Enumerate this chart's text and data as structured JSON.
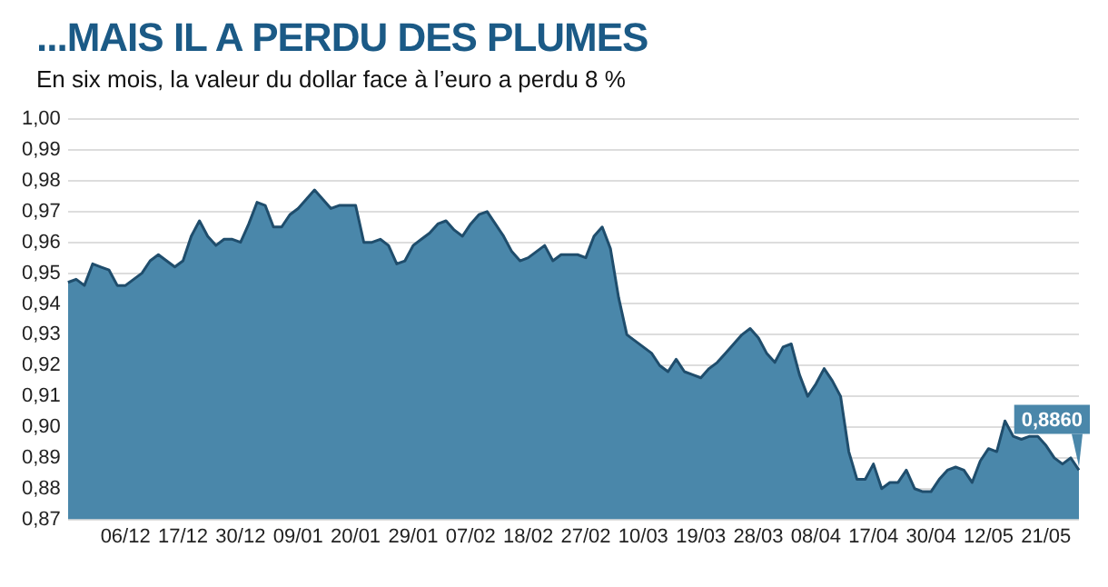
{
  "chart_data": {
    "type": "area",
    "title": "...MAIS IL A PERDU DES PLUMES",
    "subtitle": "En six mois, la valeur du dollar face à l’euro a perdu 8 %",
    "categories": [
      null,
      null,
      null,
      null,
      null,
      null,
      null,
      "06/12",
      null,
      null,
      null,
      null,
      null,
      null,
      "17/12",
      null,
      null,
      null,
      null,
      null,
      null,
      "30/12",
      null,
      null,
      null,
      null,
      null,
      null,
      "09/01",
      null,
      null,
      null,
      null,
      null,
      null,
      "20/01",
      null,
      null,
      null,
      null,
      null,
      null,
      "29/01",
      null,
      null,
      null,
      null,
      null,
      null,
      "07/02",
      null,
      null,
      null,
      null,
      null,
      null,
      "18/02",
      null,
      null,
      null,
      null,
      null,
      null,
      "27/02",
      null,
      null,
      null,
      null,
      null,
      null,
      "10/03",
      null,
      null,
      null,
      null,
      null,
      null,
      "19/03",
      null,
      null,
      null,
      null,
      null,
      null,
      "28/03",
      null,
      null,
      null,
      null,
      null,
      null,
      "08/04",
      null,
      null,
      null,
      null,
      null,
      null,
      "17/04",
      null,
      null,
      null,
      null,
      null,
      null,
      "30/04",
      null,
      null,
      null,
      null,
      null,
      null,
      "12/05",
      null,
      null,
      null,
      null,
      null,
      null,
      "21/05",
      null,
      null,
      null,
      null
    ],
    "series": [
      {
        "color": "#4a87aa",
        "values": [
          0.947,
          0.948,
          0.946,
          0.953,
          0.952,
          0.951,
          0.946,
          0.946,
          0.948,
          0.95,
          0.954,
          0.956,
          0.954,
          0.952,
          0.954,
          0.962,
          0.967,
          0.962,
          0.959,
          0.961,
          0.961,
          0.96,
          0.966,
          0.973,
          0.972,
          0.965,
          0.965,
          0.969,
          0.971,
          0.974,
          0.977,
          0.974,
          0.971,
          0.972,
          0.972,
          0.972,
          0.96,
          0.96,
          0.961,
          0.959,
          0.953,
          0.954,
          0.959,
          0.961,
          0.963,
          0.966,
          0.967,
          0.964,
          0.962,
          0.966,
          0.969,
          0.97,
          0.966,
          0.962,
          0.957,
          0.954,
          0.955,
          0.957,
          0.959,
          0.954,
          0.956,
          0.956,
          0.956,
          0.955,
          0.962,
          0.965,
          0.958,
          0.942,
          0.93,
          0.928,
          0.926,
          0.924,
          0.92,
          0.918,
          0.922,
          0.918,
          0.917,
          0.916,
          0.919,
          0.921,
          0.924,
          0.927,
          0.93,
          0.932,
          0.929,
          0.924,
          0.921,
          0.926,
          0.927,
          0.917,
          0.91,
          0.914,
          0.919,
          0.915,
          0.91,
          0.892,
          0.883,
          0.883,
          0.888,
          0.88,
          0.882,
          0.882,
          0.886,
          0.88,
          0.879,
          0.879,
          0.883,
          0.886,
          0.887,
          0.886,
          0.882,
          0.889,
          0.893,
          0.892,
          0.902,
          0.897,
          0.896,
          0.897,
          0.897,
          0.894,
          0.89,
          0.888,
          0.89,
          0.886
        ],
        "value_labels": [
          null,
          null,
          null,
          null,
          null,
          null,
          null,
          null,
          null,
          null,
          null,
          null,
          null,
          null,
          null,
          null,
          null,
          null,
          null,
          null,
          null,
          null,
          null,
          null,
          null,
          null,
          null,
          null,
          null,
          null,
          null,
          null,
          null,
          null,
          null,
          null,
          null,
          null,
          null,
          null,
          null,
          null,
          null,
          null,
          null,
          null,
          null,
          null,
          null,
          null,
          null,
          null,
          null,
          null,
          null,
          null,
          null,
          null,
          null,
          null,
          null,
          null,
          null,
          null,
          null,
          null,
          null,
          null,
          null,
          null,
          null,
          null,
          null,
          null,
          null,
          null,
          null,
          null,
          null,
          null,
          null,
          null,
          null,
          null,
          null,
          null,
          null,
          null,
          null,
          null,
          null,
          null,
          null,
          null,
          null,
          null,
          null,
          null,
          null,
          null,
          null,
          null,
          null,
          null,
          null,
          null,
          null,
          null,
          null,
          null,
          null,
          null,
          null,
          null,
          null,
          null,
          null,
          null,
          null,
          null,
          null,
          null,
          null,
          "0,8860"
        ]
      }
    ],
    "ylim": [
      0.87,
      1.0
    ],
    "yticks": [
      {
        "value": 0.87,
        "label": "0,87"
      },
      {
        "value": 0.88,
        "label": "0,88"
      },
      {
        "value": 0.89,
        "label": "0,89"
      },
      {
        "value": 0.9,
        "label": "0,90"
      },
      {
        "value": 0.91,
        "label": "0,91"
      },
      {
        "value": 0.92,
        "label": "0,92"
      },
      {
        "value": 0.93,
        "label": "0,93"
      },
      {
        "value": 0.94,
        "label": "0,94"
      },
      {
        "value": 0.95,
        "label": "0,95"
      },
      {
        "value": 0.96,
        "label": "0,96"
      },
      {
        "value": 0.97,
        "label": "0,97"
      },
      {
        "value": 0.98,
        "label": "0,98"
      },
      {
        "value": 0.99,
        "label": "0,99"
      },
      {
        "value": 1.0,
        "label": "1,00"
      }
    ],
    "grid": "y"
  }
}
